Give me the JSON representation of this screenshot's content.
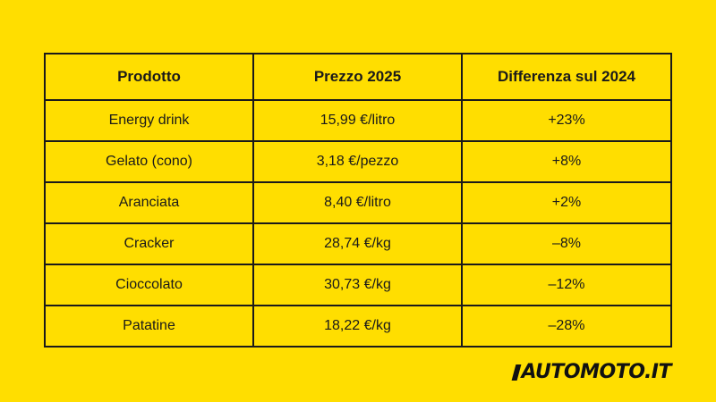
{
  "table": {
    "headers": [
      "Prodotto",
      "Prezzo 2025",
      "Differenza sul 2024"
    ],
    "rows": [
      {
        "product": "Energy drink",
        "price": "15,99 €/litro",
        "diff": "+23%"
      },
      {
        "product": "Gelato (cono)",
        "price": "3,18 €/pezzo",
        "diff": "+8%"
      },
      {
        "product": "Aranciata",
        "price": "8,40 €/litro",
        "diff": "+2%"
      },
      {
        "product": "Cracker",
        "price": "28,74 €/kg",
        "diff": "–8%"
      },
      {
        "product": "Cioccolato",
        "price": "30,73 €/kg",
        "diff": "–12%"
      },
      {
        "product": "Patatine",
        "price": "18,22 €/kg",
        "diff": "–28%"
      }
    ]
  },
  "logo": {
    "text": "AUTOMOTO.IT"
  }
}
